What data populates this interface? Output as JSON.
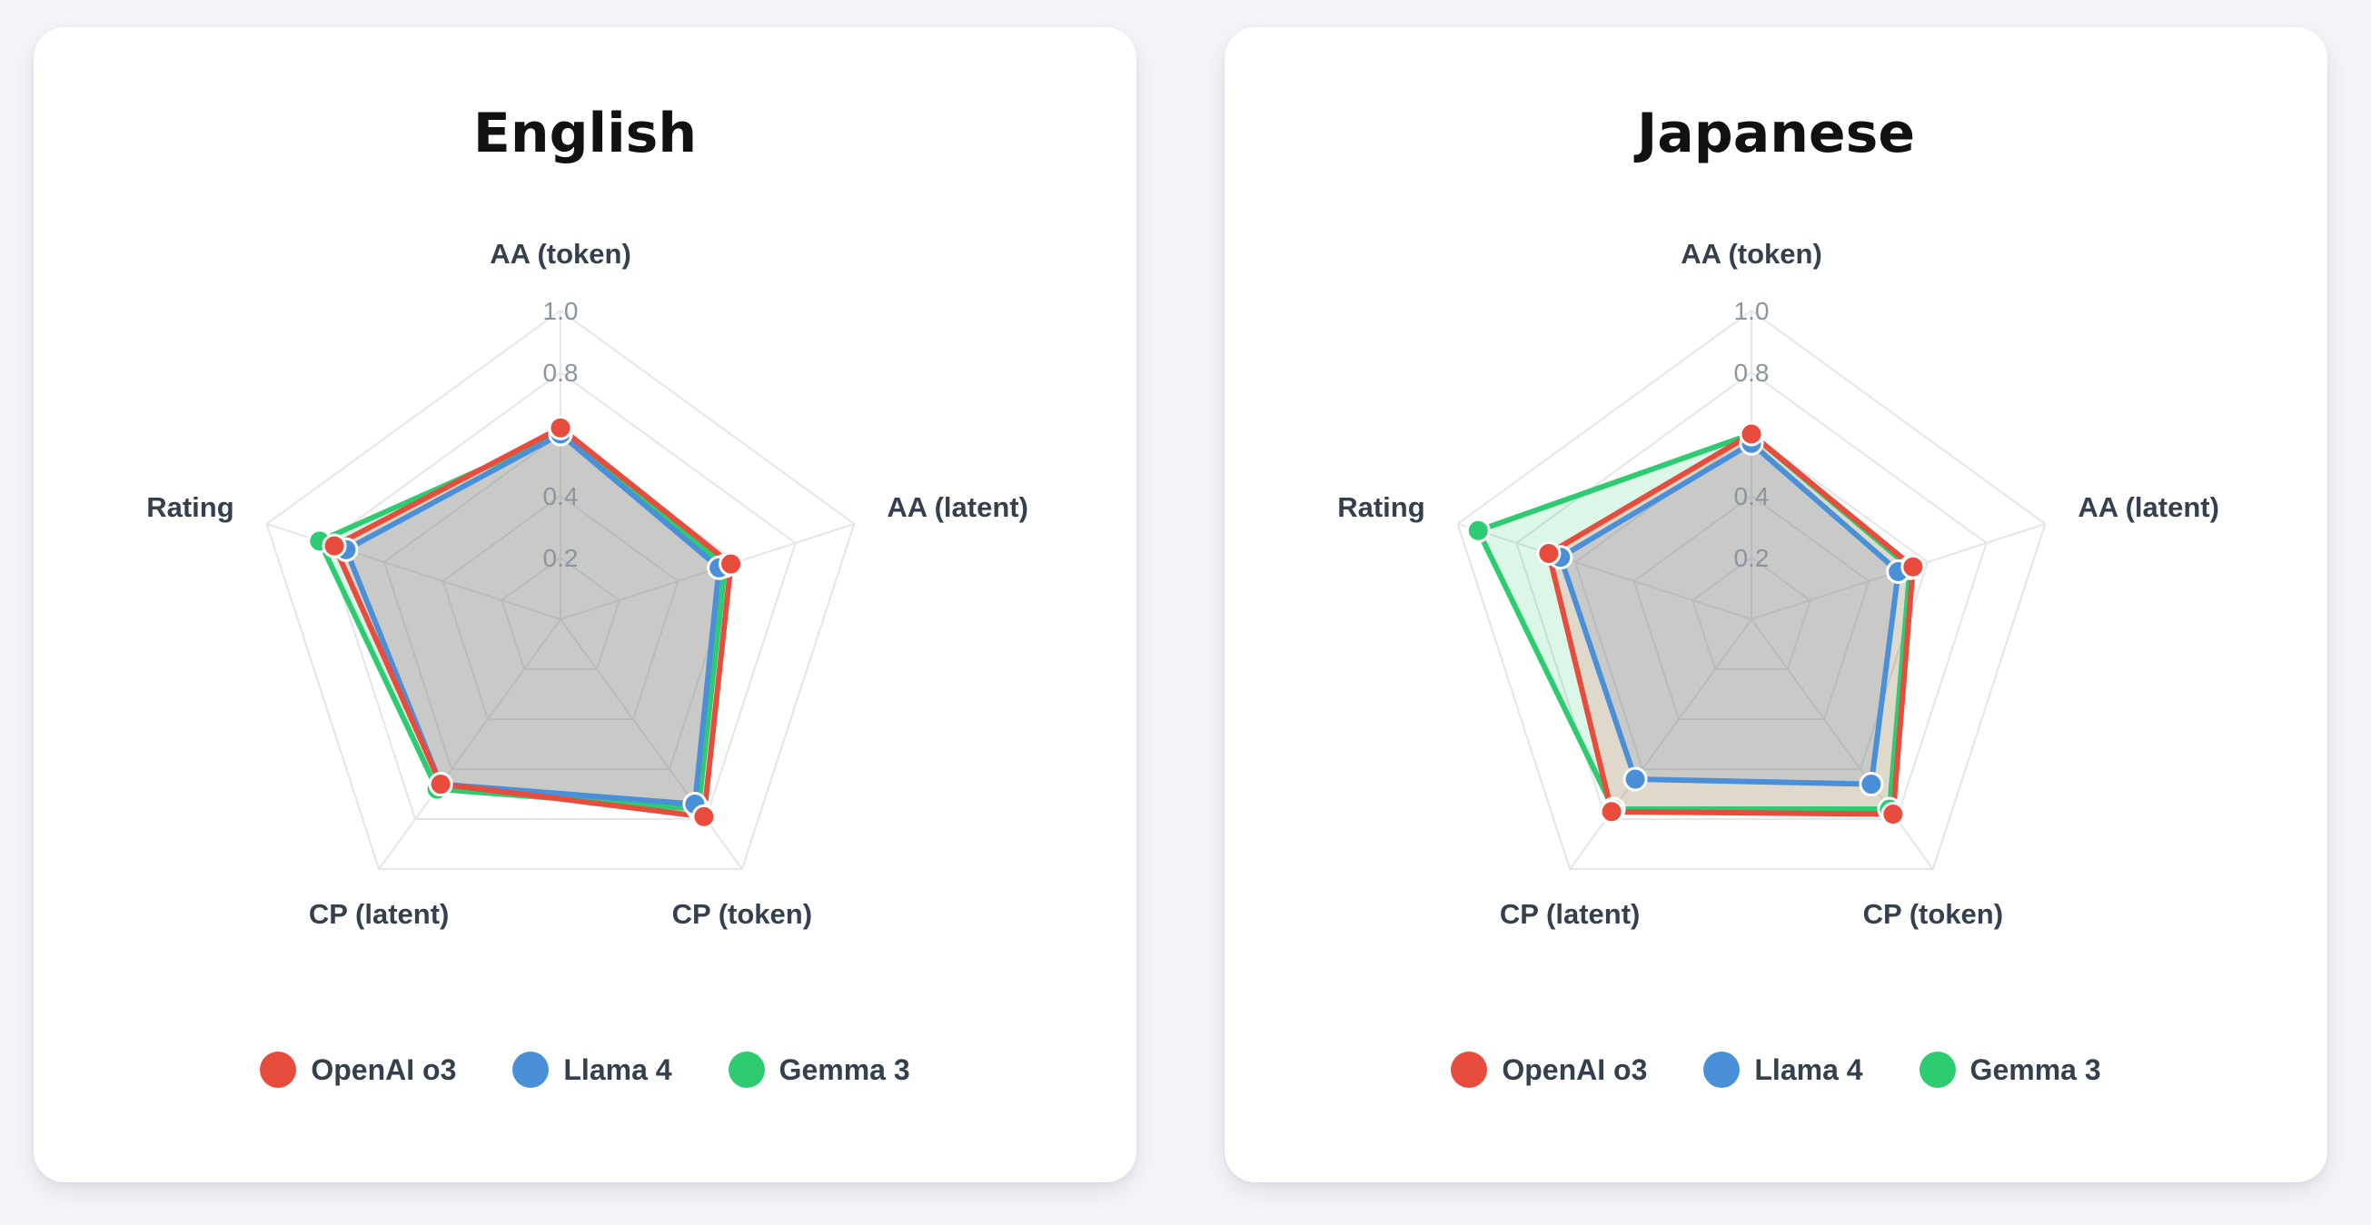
{
  "chart_data": [
    {
      "type": "radar",
      "title": "English",
      "axes": [
        "AA (token)",
        "AA (latent)",
        "CP (token)",
        "CP (latent)",
        "Rating"
      ],
      "ticks": [
        "0.2",
        "0.4",
        "0.8",
        "1.0"
      ],
      "tick_values": [
        0.2,
        0.4,
        0.8,
        1.0
      ],
      "grid_levels": [
        0.2,
        0.4,
        0.6,
        0.8,
        1.0
      ],
      "rlim": [
        0,
        1
      ],
      "legend": "bottom",
      "series": [
        {
          "name": "Gemma 3",
          "color": "#2ecc71",
          "values": [
            0.6,
            0.56,
            0.76,
            0.68,
            0.82
          ]
        },
        {
          "name": "Llama 4",
          "color": "#4a90d9",
          "values": [
            0.6,
            0.54,
            0.74,
            0.66,
            0.73
          ]
        },
        {
          "name": "OpenAI o3",
          "color": "#e74c3c",
          "values": [
            0.62,
            0.58,
            0.79,
            0.66,
            0.77
          ]
        }
      ]
    },
    {
      "type": "radar",
      "title": "Japanese",
      "axes": [
        "AA (token)",
        "AA (latent)",
        "CP (token)",
        "CP (latent)",
        "Rating"
      ],
      "ticks": [
        "0.2",
        "0.4",
        "0.8",
        "1.0"
      ],
      "tick_values": [
        0.2,
        0.4,
        0.8,
        1.0
      ],
      "grid_levels": [
        0.2,
        0.4,
        0.6,
        0.8,
        1.0
      ],
      "rlim": [
        0,
        1
      ],
      "legend": "bottom",
      "series": [
        {
          "name": "Gemma 3",
          "color": "#2ecc71",
          "values": [
            0.6,
            0.54,
            0.76,
            0.76,
            0.93
          ]
        },
        {
          "name": "Llama 4",
          "color": "#4a90d9",
          "values": [
            0.57,
            0.5,
            0.66,
            0.64,
            0.65
          ]
        },
        {
          "name": "OpenAI o3",
          "color": "#e74c3c",
          "values": [
            0.6,
            0.55,
            0.78,
            0.77,
            0.69
          ]
        }
      ]
    }
  ],
  "legend": {
    "items": [
      {
        "name": "OpenAI o3",
        "color": "#e74c3c"
      },
      {
        "name": "Llama 4",
        "color": "#4a90d9"
      },
      {
        "name": "Gemma 3",
        "color": "#2ecc71"
      }
    ]
  }
}
